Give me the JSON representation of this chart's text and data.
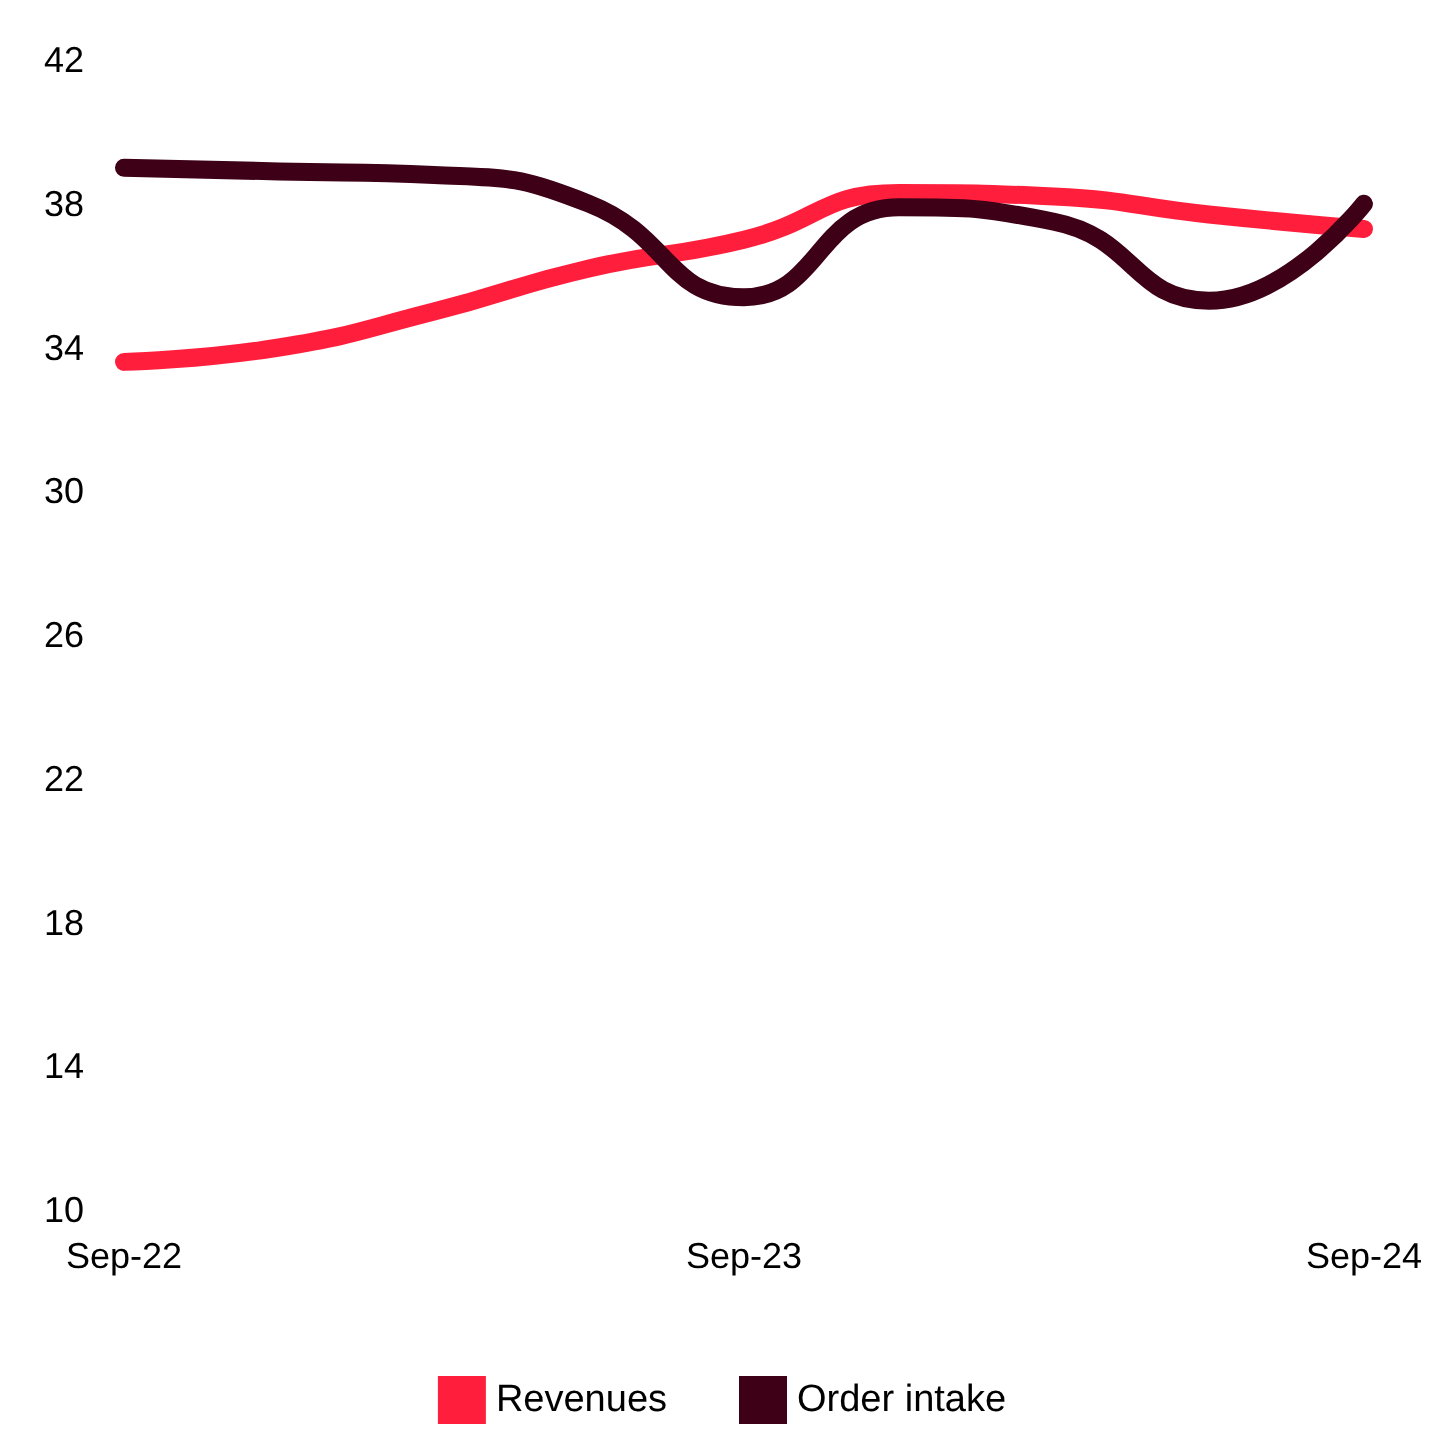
{
  "chart_data": {
    "type": "line",
    "categories": [
      "Sep-22",
      null,
      null,
      null,
      "Sep-23",
      null,
      null,
      null,
      "Sep-24"
    ],
    "series": [
      {
        "name": "Revenues",
        "color": "#ff1f3d",
        "values": [
          33.6,
          34.0,
          35.0,
          36.2,
          37.0,
          38.3,
          38.2,
          37.7,
          37.3
        ]
      },
      {
        "name": "Order intake",
        "color": "#3d0017",
        "values": [
          39.0,
          38.9,
          38.8,
          38.0,
          35.4,
          37.9,
          37.5,
          35.3,
          38.0
        ]
      }
    ],
    "ylim": [
      10,
      42
    ],
    "yticks": [
      10,
      14,
      18,
      22,
      26,
      30,
      34,
      38,
      42
    ],
    "grid": false,
    "legend": "bottom",
    "marker": "none",
    "line_style": "solid"
  }
}
